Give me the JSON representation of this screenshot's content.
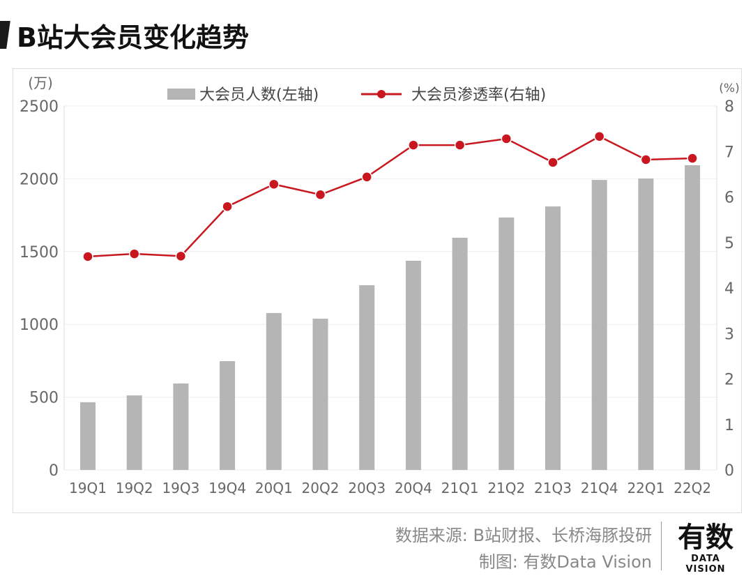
{
  "title": "B站大会员变化趋势",
  "chart_data": {
    "type": "bar+line",
    "categories": [
      "19Q1",
      "19Q2",
      "19Q3",
      "19Q4",
      "20Q1",
      "20Q2",
      "20Q3",
      "20Q4",
      "21Q1",
      "21Q2",
      "21Q3",
      "21Q4",
      "22Q1",
      "22Q2"
    ],
    "series": [
      {
        "name": "大会员人数(左轴)",
        "type": "bar",
        "axis": "left",
        "color": "#b5b5b5",
        "values": [
          465,
          512,
          594,
          747,
          1078,
          1039,
          1269,
          1437,
          1595,
          1734,
          1810,
          1992,
          2002,
          2093
        ]
      },
      {
        "name": "大会员渗透率(右轴)",
        "type": "line",
        "axis": "right",
        "color": "#c8171e",
        "values": [
          4.69,
          4.75,
          4.7,
          5.79,
          6.28,
          6.05,
          6.44,
          7.14,
          7.14,
          7.28,
          6.76,
          7.33,
          6.82,
          6.85
        ]
      }
    ],
    "left_axis": {
      "unit": "(万)",
      "ylim": [
        0,
        2500
      ],
      "ticks": [
        0,
        500,
        1000,
        1500,
        2000,
        2500
      ]
    },
    "right_axis": {
      "unit": "(%)",
      "ylim": [
        0,
        8
      ],
      "ticks": [
        0,
        1,
        2,
        3,
        4,
        5,
        6,
        7,
        8
      ]
    },
    "legend_placement": "top-center",
    "grid": true
  },
  "footer": {
    "source": "数据来源: B站财报、长桥海豚投研",
    "made_by": "制图: 有数Data Vision"
  },
  "logo": {
    "main": "有数",
    "sub": "DATA VISION"
  }
}
